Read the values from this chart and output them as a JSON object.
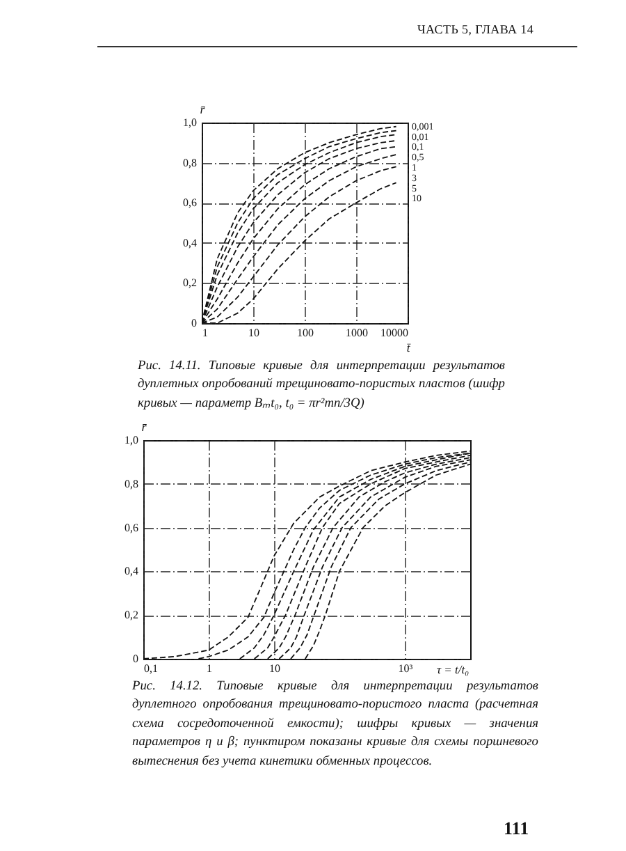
{
  "chart_data": [
    {
      "type": "line",
      "xlabel": "t̄",
      "ylabel": "r̄",
      "annotations": [
        "ЧАСТЬ 5, ГЛАВА 14",
        "Рис. 14.11. Типовые кривые для интерпретации результатов дуплетных опробований трещиновато-пористых пластов (шифр кривых — параметр Bₘt₀, t₀ = πr²mn/3Q)"
      ],
      "log": "x",
      "xlim": [
        1,
        10000
      ],
      "xticks": [
        1,
        10,
        100,
        1000,
        10000
      ],
      "ylim": [
        0,
        1
      ],
      "yticks": [
        0,
        {
          "value": 0.2,
          "label": "0,2"
        },
        {
          "value": 0.4,
          "label": "0,4"
        },
        {
          "value": 0.6,
          "label": "0,6"
        },
        {
          "value": 0.8,
          "label": "0,8"
        },
        {
          "value": 1,
          "label": "1,0"
        }
      ],
      "grid": true,
      "line_style": "dashed",
      "series": [
        {
          "name": "0,001",
          "color": "#111111",
          "x": [
            1,
            2,
            5,
            10,
            30,
            100,
            300,
            1000,
            3000,
            6000
          ],
          "values": [
            0,
            0.32,
            0.55,
            0.66,
            0.77,
            0.85,
            0.9,
            0.94,
            0.97,
            0.98
          ]
        },
        {
          "name": "0,01",
          "color": "#111111",
          "x": [
            1,
            2,
            5,
            10,
            30,
            100,
            300,
            1000,
            3000,
            6000
          ],
          "values": [
            0,
            0.28,
            0.5,
            0.62,
            0.74,
            0.82,
            0.88,
            0.92,
            0.95,
            0.96
          ]
        },
        {
          "name": "0,1",
          "color": "#111111",
          "x": [
            1,
            2,
            5,
            10,
            30,
            100,
            300,
            1000,
            3000,
            6000
          ],
          "values": [
            0,
            0.24,
            0.45,
            0.57,
            0.7,
            0.79,
            0.85,
            0.9,
            0.93,
            0.94
          ]
        },
        {
          "name": "0,5",
          "color": "#111111",
          "x": [
            1,
            2,
            5,
            10,
            30,
            100,
            300,
            1000,
            3000,
            6000
          ],
          "values": [
            0,
            0.18,
            0.38,
            0.5,
            0.64,
            0.75,
            0.82,
            0.87,
            0.9,
            0.91
          ]
        },
        {
          "name": "1",
          "color": "#111111",
          "x": [
            1,
            2,
            5,
            10,
            30,
            100,
            300,
            1000,
            3000,
            6000
          ],
          "values": [
            0,
            0.12,
            0.3,
            0.42,
            0.57,
            0.69,
            0.77,
            0.83,
            0.87,
            0.88
          ]
        },
        {
          "name": "3",
          "color": "#111111",
          "x": [
            1,
            2,
            5,
            10,
            30,
            100,
            300,
            1000,
            3000,
            6000
          ],
          "values": [
            0,
            0.07,
            0.22,
            0.33,
            0.49,
            0.62,
            0.71,
            0.78,
            0.82,
            0.84
          ]
        },
        {
          "name": "5",
          "color": "#111111",
          "x": [
            1,
            2,
            5,
            10,
            30,
            100,
            300,
            1000,
            3000,
            6000
          ],
          "values": [
            0,
            0.03,
            0.13,
            0.23,
            0.39,
            0.53,
            0.63,
            0.71,
            0.76,
            0.78
          ]
        },
        {
          "name": "10",
          "color": "#111111",
          "x": [
            1,
            2,
            5,
            10,
            30,
            100,
            300,
            1000,
            3000,
            6000
          ],
          "values": [
            0,
            0,
            0.05,
            0.12,
            0.27,
            0.41,
            0.52,
            0.6,
            0.67,
            0.7
          ]
        }
      ]
    },
    {
      "type": "line",
      "xlabel": "τ = t/t₀",
      "ylabel": "r̄",
      "annotations": [
        "Рис. 14.12. Типовые кривые для интерпретации результатов дуплетного опробования трещиновато-пористого пласта (расчетная схема сосредоточенной емкости); шифры кривых — значения параметров η и β; пунктиром показаны кривые для схемы поршневого вытеснения без учета кинетики обменных процессов.",
        "111"
      ],
      "log": "x",
      "xlim": [
        0.1,
        10000
      ],
      "xticks": [
        {
          "value": 0.1,
          "label": "0,1"
        },
        1,
        10,
        {
          "value": 1000,
          "label": "10³"
        }
      ],
      "ylim": [
        0,
        1
      ],
      "yticks": [
        0,
        {
          "value": 0.2,
          "label": "0,2"
        },
        {
          "value": 0.4,
          "label": "0,4"
        },
        {
          "value": 0.6,
          "label": "0,6"
        },
        {
          "value": 0.8,
          "label": "0,8"
        },
        {
          "value": 1,
          "label": "1,0"
        }
      ],
      "grid": true,
      "line_style": "dashed",
      "series": [
        {
          "color": "#111111",
          "x": [
            0.1,
            0.3,
            1,
            2,
            4,
            7,
            10,
            20,
            50,
            100,
            300,
            1000,
            3000,
            10000
          ],
          "values": [
            0,
            0.01,
            0.04,
            0.1,
            0.19,
            0.36,
            0.47,
            0.62,
            0.74,
            0.79,
            0.86,
            0.9,
            0.93,
            0.95
          ]
        },
        {
          "color": "#111111",
          "x": [
            0.7,
            1,
            2,
            4,
            7,
            10,
            20,
            30,
            50,
            100,
            300,
            1000,
            3000,
            10000
          ],
          "values": [
            0,
            0.01,
            0.04,
            0.1,
            0.19,
            0.3,
            0.5,
            0.6,
            0.69,
            0.77,
            0.84,
            0.89,
            0.92,
            0.94
          ]
        },
        {
          "color": "#111111",
          "x": [
            3,
            5,
            7,
            10,
            20,
            40,
            100,
            300,
            1000,
            3000,
            10000
          ],
          "values": [
            0,
            0.05,
            0.11,
            0.2,
            0.4,
            0.59,
            0.74,
            0.82,
            0.88,
            0.91,
            0.94
          ]
        },
        {
          "color": "#111111",
          "x": [
            5,
            8,
            10,
            15,
            30,
            55,
            100,
            300,
            1000,
            3000,
            10000
          ],
          "values": [
            0,
            0.05,
            0.1,
            0.2,
            0.42,
            0.6,
            0.71,
            0.8,
            0.87,
            0.9,
            0.93
          ]
        },
        {
          "color": "#111111",
          "x": [
            8,
            12,
            15,
            21,
            40,
            80,
            200,
            500,
            1000,
            3000,
            10000
          ],
          "values": [
            0,
            0.05,
            0.1,
            0.2,
            0.42,
            0.6,
            0.74,
            0.81,
            0.85,
            0.89,
            0.92
          ]
        },
        {
          "color": "#111111",
          "x": [
            12,
            18,
            22,
            29,
            55,
            110,
            300,
            1000,
            3000,
            10000
          ],
          "values": [
            0,
            0.05,
            0.1,
            0.2,
            0.42,
            0.6,
            0.74,
            0.83,
            0.88,
            0.91
          ]
        },
        {
          "color": "#111111",
          "x": [
            18,
            25,
            32,
            41,
            75,
            150,
            400,
            1000,
            3000,
            10000
          ],
          "values": [
            0,
            0.05,
            0.11,
            0.2,
            0.42,
            0.6,
            0.73,
            0.8,
            0.86,
            0.9
          ]
        },
        {
          "color": "#111111",
          "x": [
            30,
            40,
            50,
            61,
            100,
            230,
            500,
            1000,
            3000,
            10000
          ],
          "values": [
            0,
            0.06,
            0.13,
            0.2,
            0.4,
            0.6,
            0.7,
            0.76,
            0.84,
            0.89
          ]
        }
      ]
    }
  ]
}
